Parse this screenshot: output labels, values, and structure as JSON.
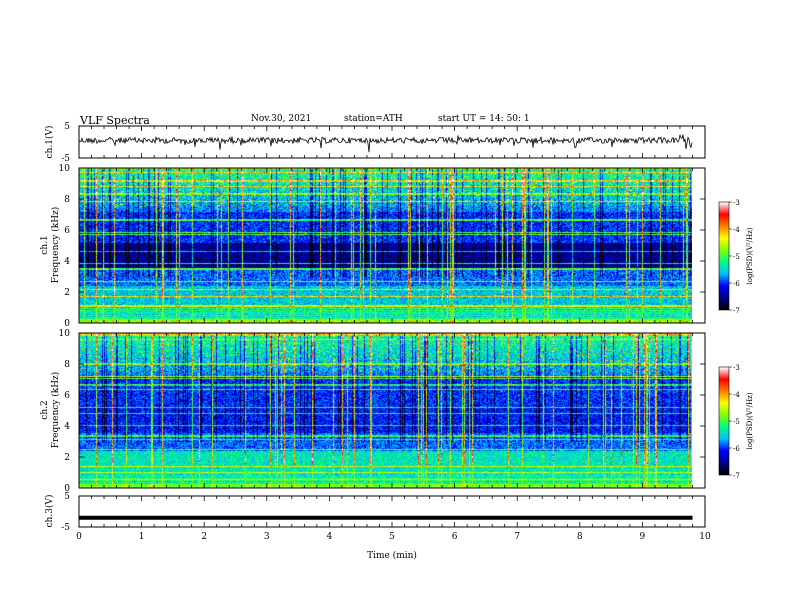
{
  "header": {
    "title": "VLF  Spectra",
    "date": "Nov.30, 2021",
    "station": "station=ATH",
    "start": "start  UT  =    14: 50: 1"
  },
  "chart_data": [
    {
      "type": "line",
      "id": "ch1-waveform",
      "ylabel": "ch.1(V)",
      "ylim": [
        -5,
        5
      ],
      "yticks": [
        "5",
        "-5"
      ],
      "description_level": 0.5,
      "grid": false
    },
    {
      "type": "heatmap",
      "id": "ch1-spectrogram",
      "ylabel": "ch.1\nFrequency  (kHz)",
      "ylim": [
        0,
        10
      ],
      "yticks": [
        "0",
        "2",
        "4",
        "6",
        "8",
        "10"
      ],
      "xlim": [
        0,
        10
      ],
      "colorbar": {
        "label": "log(PSD)(V²/Hz)",
        "range": [
          -7,
          -3
        ],
        "ticks": [
          "-3",
          "-4",
          "-5",
          "-6",
          "-7"
        ]
      }
    },
    {
      "type": "heatmap",
      "id": "ch2-spectrogram",
      "ylabel": "ch.2\nFrequency  (kHz)",
      "ylim": [
        0,
        10
      ],
      "yticks": [
        "0",
        "2",
        "4",
        "6",
        "8",
        "10"
      ],
      "xlim": [
        0,
        10
      ],
      "colorbar": {
        "label": "log(PSD)(V²/Hz)",
        "range": [
          -7,
          -3
        ],
        "ticks": [
          "-3",
          "-4",
          "-5",
          "-6",
          "-7"
        ]
      }
    },
    {
      "type": "line",
      "id": "ch3-waveform",
      "ylabel": "ch.3(V)",
      "ylim": [
        -5,
        5
      ],
      "yticks": [
        "5",
        "-5"
      ],
      "level": -2,
      "grid": false
    }
  ],
  "xaxis": {
    "label": "Time  (min)",
    "range": [
      0,
      10
    ],
    "ticks": [
      "0",
      "1",
      "2",
      "3",
      "4",
      "5",
      "6",
      "7",
      "8",
      "9",
      "10"
    ],
    "data_end": 9.8
  },
  "labels": {
    "ch1_wave": "ch.1(V)",
    "ch1_spec_a": "ch.1",
    "ch1_spec_b": "Frequency  (kHz)",
    "ch2_spec_a": "ch.2",
    "ch2_spec_b": "Frequency  (kHz)",
    "ch3_wave": "ch.3(V)",
    "cbar": "log(PSD)(V²/Hz)"
  },
  "colors": {
    "axes": "#000000",
    "trace": "#000000",
    "background": "#ffffff",
    "colormap": [
      "#000000",
      "#00008b",
      "#0000ff",
      "#00bfff",
      "#00ff7f",
      "#7fff00",
      "#ffff00",
      "#ff8000",
      "#ff0000",
      "#ffffff"
    ]
  }
}
